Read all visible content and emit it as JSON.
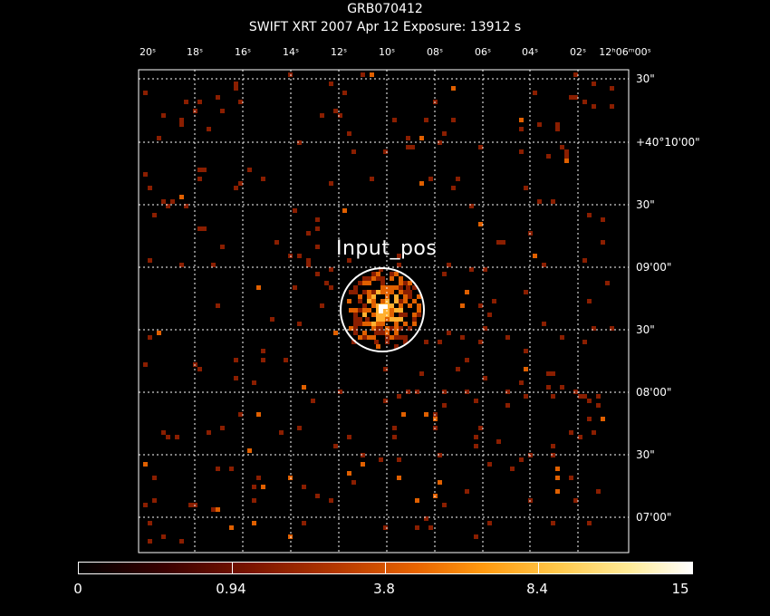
{
  "header": {
    "target": "GRB070412",
    "subtitle": "SWIFT XRT   2007 Apr 12     Exposure: 13912 s"
  },
  "ra_axis": {
    "labels": [
      "20ˢ",
      "18ˢ",
      "16ˢ",
      "14ˢ",
      "12ˢ",
      "10ˢ",
      "08ˢ",
      "06ˢ",
      "04ˢ",
      "02ˢ",
      "12ʰ06ᵐ00ˢ"
    ]
  },
  "dec_axis": {
    "labels": [
      "30\"",
      "+40°10'00\"",
      "30\"",
      "09'00\"",
      "30\"",
      "08'00\"",
      "30\"",
      "07'00\""
    ]
  },
  "source": {
    "label": "Input_pos"
  },
  "colorbar": {
    "labels": [
      "0",
      "0.94",
      "3.8",
      "8.4",
      "15"
    ]
  },
  "colors": {
    "grid": "#ffffff",
    "low": "#8a1e00",
    "mid": "#e06000",
    "high": "#ffb030",
    "peak": "#ffffff"
  }
}
